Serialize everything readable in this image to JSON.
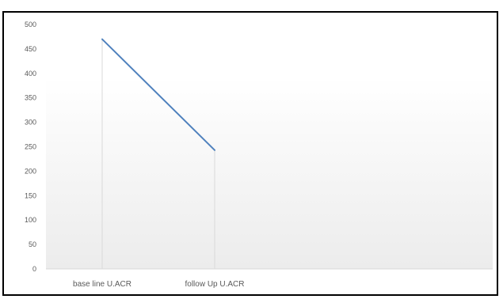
{
  "chart_data": {
    "type": "line",
    "categories": [
      "base line  U.ACR",
      "follow  Up U.ACR"
    ],
    "series": [
      {
        "values": [
          470,
          243
        ]
      }
    ],
    "yticks": [
      0,
      50,
      100,
      150,
      200,
      250,
      300,
      350,
      400,
      450,
      500
    ],
    "ylim": [
      0,
      500
    ],
    "grid": false,
    "legend": "none",
    "colors": {
      "line": "#4f81bd",
      "drop_line": "#d9d9d9",
      "axis": "#d9d9d9",
      "plot_gradient_top": "#ffffff",
      "plot_gradient_bottom": "#ececec"
    }
  }
}
